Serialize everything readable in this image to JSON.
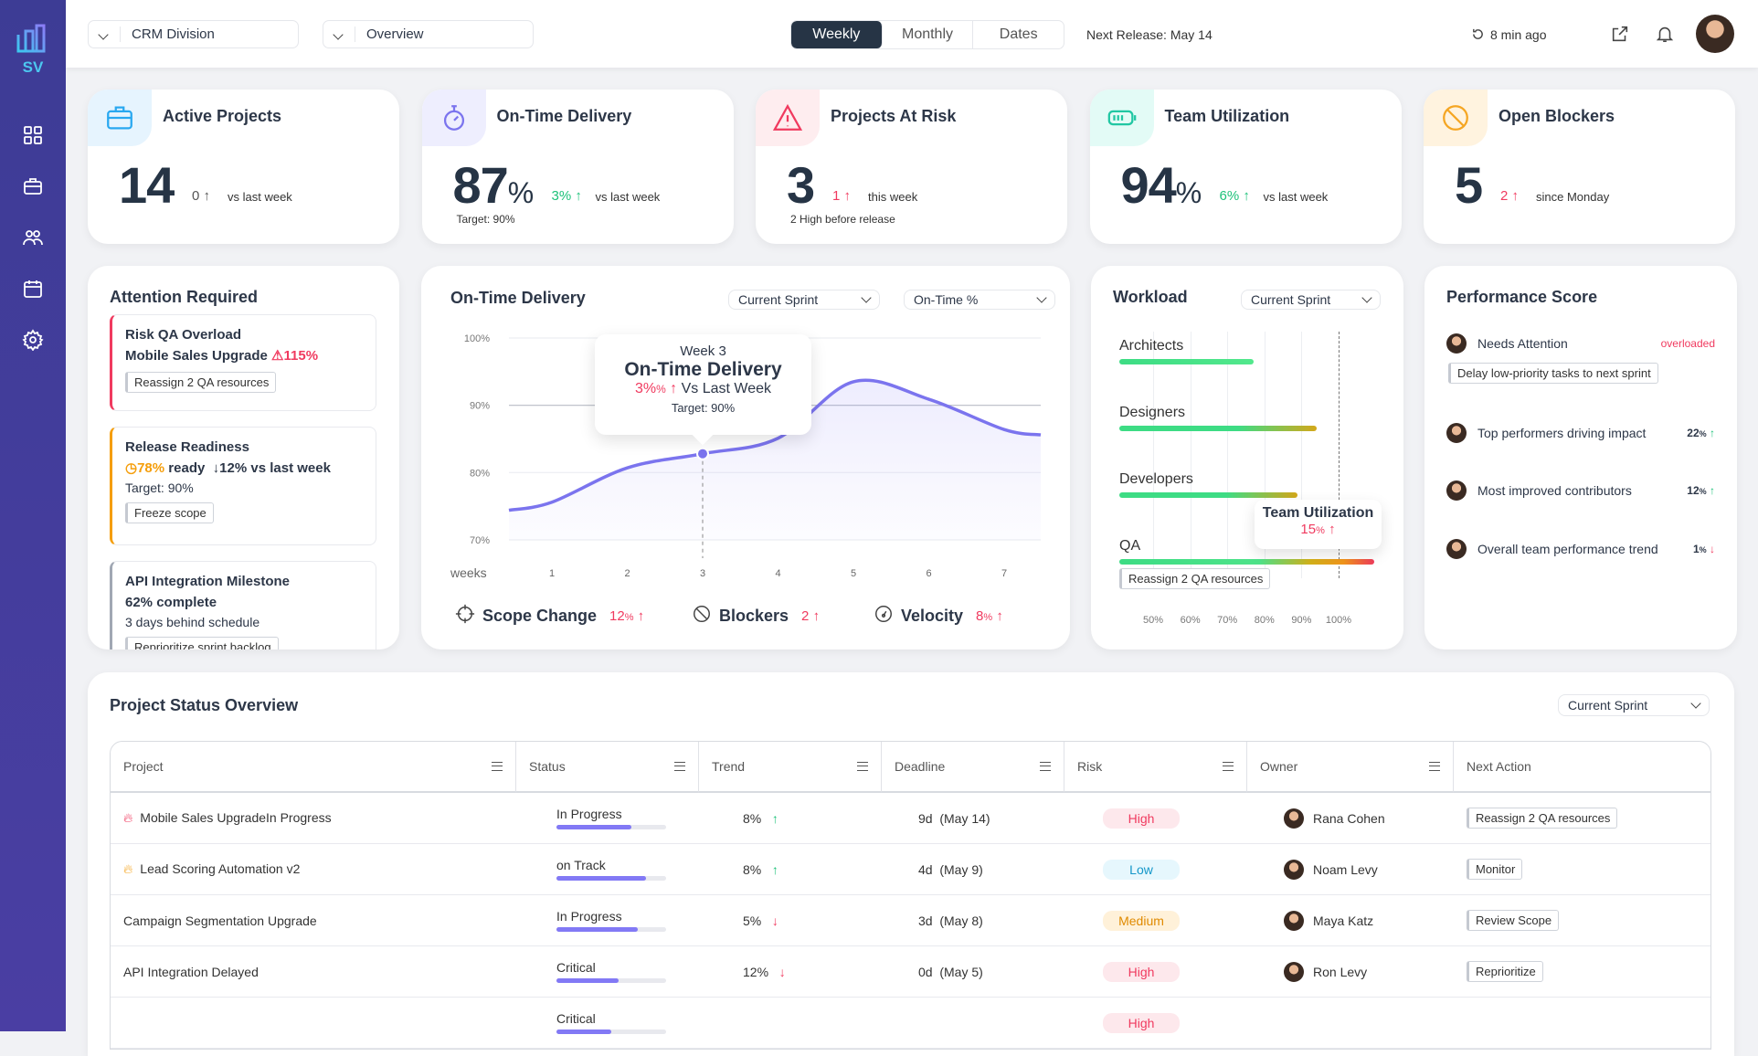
{
  "brand": {
    "logo_text": "SV",
    "accent": "#3d3c95"
  },
  "sidebar": {
    "items": [
      {
        "icon": "dashboard-icon"
      },
      {
        "icon": "briefcase-icon"
      },
      {
        "icon": "team-icon"
      },
      {
        "icon": "calendar-icon"
      },
      {
        "icon": "gear-icon"
      }
    ]
  },
  "topbar": {
    "division": "CRM Division",
    "view": "Overview",
    "periods": [
      "Weekly",
      "Monthly",
      "Dates"
    ],
    "active_period": "Weekly",
    "next_release": "Next Release: May 14",
    "updated": "8 min ago"
  },
  "stats": [
    {
      "title": "Active Projects",
      "value": "14",
      "unit": "",
      "change": "0",
      "change_dir": "up",
      "change_color": "#555555",
      "context": "vs last week",
      "note": "",
      "icon": "briefcase-icon",
      "tint": "#e6f4fe",
      "color": "#29a8f0"
    },
    {
      "title": "On-Time Delivery",
      "value": "87",
      "unit": "%",
      "change": "3%",
      "change_dir": "up",
      "change_color": "#1ec27a",
      "context": "vs last week",
      "note": "Target: 90%",
      "icon": "stopwatch-icon",
      "tint": "#eeeefe",
      "color": "#7b74ee"
    },
    {
      "title": "Projects At Risk",
      "value": "3",
      "unit": "",
      "change": "1",
      "change_dir": "up",
      "change_color": "#f03a5f",
      "context": "this week",
      "note": "2 High before release",
      "icon": "warning-icon",
      "tint": "#feedef",
      "color": "#f03a5f"
    },
    {
      "title": "Team Utilization",
      "value": "94",
      "unit": "%",
      "change": "6%",
      "change_dir": "up",
      "change_color": "#1ec27a",
      "context": "vs last week",
      "note": "",
      "icon": "battery-icon",
      "tint": "#e3fbf6",
      "color": "#22c7a3"
    },
    {
      "title": "Open Blockers",
      "value": "5",
      "unit": "",
      "change": "2",
      "change_dir": "up",
      "change_color": "#f03a5f",
      "context": "since Monday",
      "note": "",
      "icon": "blocked-icon",
      "tint": "#fff3df",
      "color": "#f5a623"
    }
  ],
  "attention": {
    "title": "Attention Required",
    "items": [
      {
        "title": "Risk QA Overload",
        "line2": "Mobile Sales Upgrade",
        "badge": "115%",
        "action": "Reassign 2 QA resources",
        "border": "#f03a5f"
      },
      {
        "title": "Release Readiness",
        "pct": "78%",
        "line2": "ready",
        "trend": "↓12% vs last week",
        "sub": "Target: 90%",
        "action": "Freeze scope",
        "border": "#f59e0b"
      },
      {
        "title": "API Integration Milestone",
        "pct": "62%",
        "line2": "complete",
        "sub": "3 days behind schedule",
        "action": "Reprioritize sprint backlog",
        "border": "#a0a7b3"
      }
    ]
  },
  "otd": {
    "title": "On-Time Delivery",
    "range": "Current Sprint",
    "metric": "On-Time %",
    "tooltip": {
      "week": "Week 3",
      "title": "On-Time Delivery",
      "change": "3%",
      "unit": "%",
      "label": "Vs Last Week",
      "target": "Target: 90%"
    },
    "metrics": [
      {
        "label": "Scope Change",
        "value": "12",
        "unit": "%",
        "icon": "crosshair-icon"
      },
      {
        "label": "Blockers",
        "value": "2",
        "unit": "",
        "icon": "blocked-icon"
      },
      {
        "label": "Velocity",
        "value": "8",
        "unit": "%",
        "icon": "gauge-icon"
      }
    ]
  },
  "chart_data": {
    "type": "line",
    "xlabel": "weeks",
    "ylabel": "",
    "x": [
      1,
      2,
      3,
      4,
      5,
      6,
      7
    ],
    "yticks": [
      "70%",
      "80%",
      "90%",
      "100%"
    ],
    "ylim": [
      70,
      100
    ],
    "series": [
      {
        "values": [
          75.6,
          80.7,
          82.8,
          85.1,
          93.5,
          90.9,
          86.4
        ],
        "color": "#7b74ee"
      }
    ],
    "highlight_x": 3,
    "target_line": 90,
    "grid": true
  },
  "workload": {
    "title": "Workload",
    "range": "Current Sprint",
    "teams": [
      {
        "name": "Architects",
        "value": 77
      },
      {
        "name": "Designers",
        "value": 94
      },
      {
        "name": "Developers",
        "value": 89
      },
      {
        "name": "QA",
        "value": 115
      }
    ],
    "ticks": [
      "50%",
      "60%",
      "70%",
      "80%",
      "90%",
      "100%"
    ],
    "tooltip": {
      "title": "Team Utilization",
      "value": "15",
      "unit": "%"
    },
    "action": "Reassign 2 QA resources"
  },
  "performance": {
    "title": "Performance Score",
    "rows": [
      {
        "label": "Needs Attention",
        "value": "overloaded",
        "action": "Delay low-priority tasks to next sprint"
      },
      {
        "label": "Top performers driving impact",
        "value": "22",
        "dir": "up"
      },
      {
        "label": "Most improved contributors",
        "value": "12",
        "dir": "up"
      },
      {
        "label": "Overall team performance trend",
        "value": "1",
        "dir": "down"
      }
    ]
  },
  "table": {
    "title": "Project Status Overview",
    "range": "Current Sprint",
    "columns": [
      "Project",
      "Status",
      "Trend",
      "Deadline",
      "Risk",
      "Owner",
      "Next Action"
    ],
    "rows": [
      {
        "project": "Mobile Sales UpgradeIn Progress",
        "icon": "fire-red",
        "status": "In Progress",
        "progress": 0.68,
        "trend": "8%",
        "dir": "up",
        "deadline": "9d  (May 14)",
        "risk": "High",
        "owner": "Rana Cohen",
        "action": "Reassign 2 QA resources"
      },
      {
        "project": "Lead Scoring Automation v2",
        "icon": "fire-orange",
        "status": "on Track",
        "progress": 0.82,
        "trend": "8%",
        "dir": "up",
        "deadline": "4d  (May 9)",
        "risk": "Low",
        "owner": "Noam Levy",
        "action": "Monitor"
      },
      {
        "project": "Campaign Segmentation Upgrade",
        "icon": "",
        "status": "In Progress",
        "progress": 0.74,
        "trend": "5%",
        "dir": "down",
        "deadline": "3d  (May 8)",
        "risk": "Medium",
        "owner": "Maya Katz",
        "action": "Review Scope"
      },
      {
        "project": "API Integration Delayed",
        "icon": "",
        "status": "Critical",
        "progress": 0.57,
        "trend": "12%",
        "dir": "down",
        "deadline": "0d  (May 5)",
        "risk": "High",
        "owner": "Ron Levy",
        "action": "Reprioritize"
      },
      {
        "project": "",
        "icon": "",
        "status": "Critical",
        "progress": 0.5,
        "trend": "",
        "dir": "",
        "deadline": "",
        "risk": "High",
        "owner": "",
        "action": ""
      }
    ],
    "risk_colors": {
      "High": [
        "#fde8ec",
        "#f03a5f"
      ],
      "Low": [
        "#e6f7fd",
        "#1497c9"
      ],
      "Medium": [
        "#fff1d9",
        "#e08a00"
      ]
    }
  }
}
